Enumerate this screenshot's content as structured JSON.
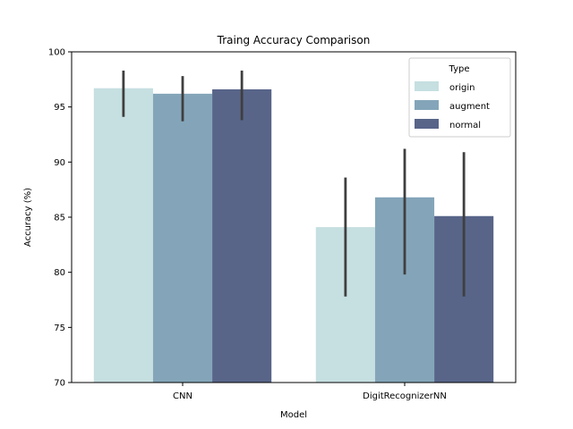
{
  "chart_data": {
    "type": "bar",
    "title": "Traing Accuracy Comparison",
    "xlabel": "Model",
    "ylabel": "Accuracy (%)",
    "categories": [
      "CNN",
      "DigitRecognizerNN"
    ],
    "ylim": [
      70,
      100
    ],
    "yticks": [
      70,
      75,
      80,
      85,
      90,
      95,
      100
    ],
    "grid": false,
    "legend": {
      "title": "Type",
      "position": "top-right"
    },
    "series": [
      {
        "name": "origin",
        "color": "#c6dfe0",
        "values": [
          96.7,
          84.1
        ],
        "error_low": [
          94.1,
          77.8
        ],
        "error_high": [
          98.3,
          88.6
        ]
      },
      {
        "name": "augment",
        "color": "#84a5b9",
        "values": [
          96.2,
          86.8
        ],
        "error_low": [
          93.7,
          79.8
        ],
        "error_high": [
          97.8,
          91.2
        ]
      },
      {
        "name": "normal",
        "color": "#586589",
        "values": [
          96.6,
          85.1
        ],
        "error_low": [
          93.8,
          77.8
        ],
        "error_high": [
          98.3,
          90.9
        ]
      }
    ],
    "error_bar_color": "#3f3f3f"
  }
}
